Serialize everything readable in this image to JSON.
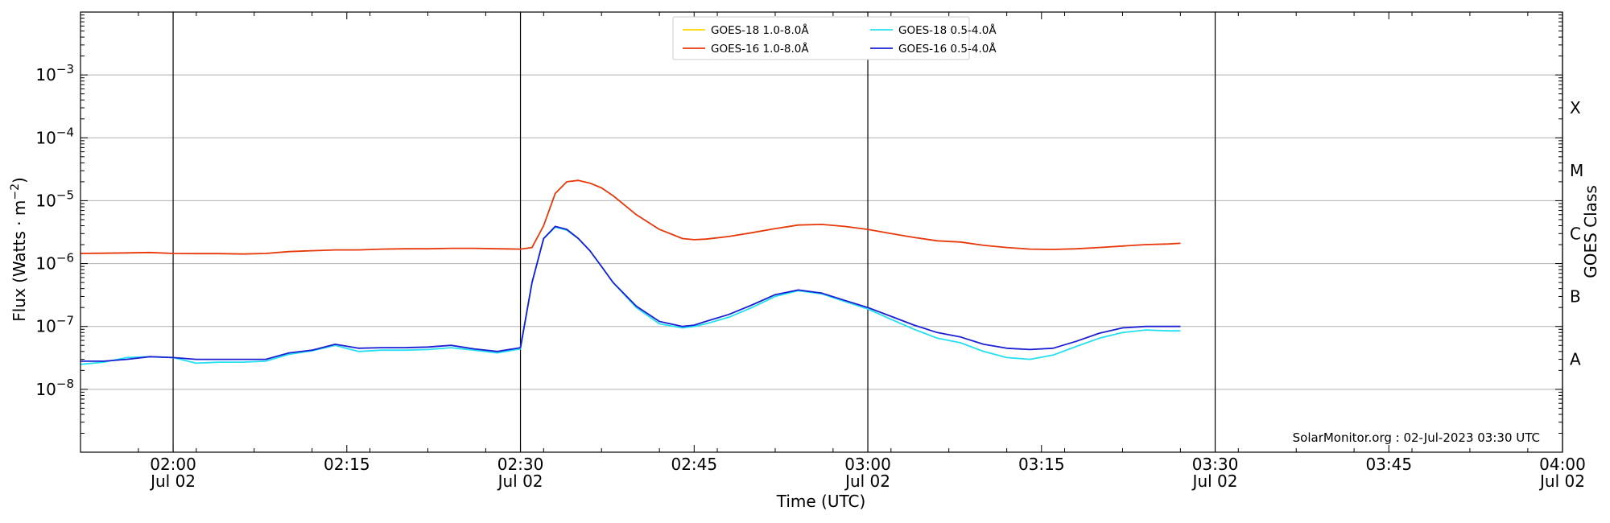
{
  "chart_data": {
    "type": "line",
    "title": "",
    "xlabel": "Time (UTC)",
    "ylabel": "Flux (Watts · m",
    "ylabel_sup": "−2",
    "ylabel_close": ")",
    "y2label": "GOES Class",
    "yscale": "log",
    "xlim": [
      "01:52",
      "04:00"
    ],
    "ylim": [
      1e-09,
      0.01
    ],
    "grid": "horizontal at decades",
    "legend_position": "top-center",
    "watermark": "SolarMonitor.org : 02-Jul-2023 03:30 UTC",
    "x_ticks": [
      {
        "value": "02:00",
        "label": "02:00",
        "sublabel": "Jul 02"
      },
      {
        "value": "02:15",
        "label": "02:15",
        "sublabel": ""
      },
      {
        "value": "02:30",
        "label": "02:30",
        "sublabel": "Jul 02"
      },
      {
        "value": "02:45",
        "label": "02:45",
        "sublabel": ""
      },
      {
        "value": "03:00",
        "label": "03:00",
        "sublabel": "Jul 02"
      },
      {
        "value": "03:15",
        "label": "03:15",
        "sublabel": ""
      },
      {
        "value": "03:30",
        "label": "03:30",
        "sublabel": "Jul 02"
      },
      {
        "value": "03:45",
        "label": "03:45",
        "sublabel": ""
      },
      {
        "value": "04:00",
        "label": "04:00",
        "sublabel": "Jul 02"
      }
    ],
    "vertical_lines": [
      "02:00",
      "02:30",
      "03:00",
      "03:30",
      "04:00"
    ],
    "y_ticks": [
      {
        "value": 1e-08,
        "base": "10",
        "exp": "−8"
      },
      {
        "value": 1e-07,
        "base": "10",
        "exp": "−7"
      },
      {
        "value": 1e-06,
        "base": "10",
        "exp": "−6"
      },
      {
        "value": 1e-05,
        "base": "10",
        "exp": "−5"
      },
      {
        "value": 0.0001,
        "base": "10",
        "exp": "−4"
      },
      {
        "value": 0.001,
        "base": "10",
        "exp": "−3"
      }
    ],
    "goes_classes": [
      {
        "label": "A",
        "value": 3e-08
      },
      {
        "label": "B",
        "value": 3e-07
      },
      {
        "label": "C",
        "value": 3e-06
      },
      {
        "label": "M",
        "value": 3e-05
      },
      {
        "label": "X",
        "value": 0.0003
      }
    ],
    "series": [
      {
        "name": "GOES-18 1.0-8.0Å",
        "color": "#FFD700",
        "x": [],
        "y": []
      },
      {
        "name": "GOES-16 1.0-8.0Å",
        "color": "#E8380A",
        "x": [
          "01:52",
          "01:54",
          "01:56",
          "01:58",
          "02:00",
          "02:02",
          "02:04",
          "02:06",
          "02:08",
          "02:10",
          "02:12",
          "02:14",
          "02:16",
          "02:18",
          "02:20",
          "02:22",
          "02:24",
          "02:26",
          "02:28",
          "02:30",
          "02:31",
          "02:32",
          "02:33",
          "02:34",
          "02:35",
          "02:36",
          "02:37",
          "02:38",
          "02:40",
          "02:42",
          "02:44",
          "02:45",
          "02:46",
          "02:48",
          "02:50",
          "02:52",
          "02:54",
          "02:56",
          "02:58",
          "03:00",
          "03:02",
          "03:04",
          "03:06",
          "03:08",
          "03:10",
          "03:12",
          "03:14",
          "03:16",
          "03:18",
          "03:20",
          "03:22",
          "03:24",
          "03:26",
          "03:27"
        ],
        "y": [
          1.45e-06,
          1.46e-06,
          1.48e-06,
          1.5e-06,
          1.45e-06,
          1.44e-06,
          1.44e-06,
          1.42e-06,
          1.45e-06,
          1.55e-06,
          1.6e-06,
          1.65e-06,
          1.65e-06,
          1.7e-06,
          1.72e-06,
          1.72e-06,
          1.75e-06,
          1.75e-06,
          1.72e-06,
          1.7e-06,
          1.8e-06,
          4e-06,
          1.3e-05,
          2e-05,
          2.1e-05,
          1.9e-05,
          1.6e-05,
          1.2e-05,
          6e-06,
          3.5e-06,
          2.5e-06,
          2.4e-06,
          2.45e-06,
          2.7e-06,
          3.1e-06,
          3.6e-06,
          4.1e-06,
          4.2e-06,
          3.9e-06,
          3.5e-06,
          3e-06,
          2.6e-06,
          2.3e-06,
          2.2e-06,
          1.95e-06,
          1.8e-06,
          1.7e-06,
          1.68e-06,
          1.72e-06,
          1.8e-06,
          1.9e-06,
          2e-06,
          2.05e-06,
          2.1e-06
        ]
      },
      {
        "name": "GOES-18 0.5-4.0Å",
        "color": "#22E0F0",
        "x": [
          "01:52",
          "01:54",
          "01:56",
          "01:58",
          "02:00",
          "02:02",
          "02:04",
          "02:06",
          "02:08",
          "02:10",
          "02:12",
          "02:14",
          "02:16",
          "02:18",
          "02:20",
          "02:22",
          "02:24",
          "02:26",
          "02:28",
          "02:30",
          "02:31",
          "02:32",
          "02:33",
          "02:34",
          "02:35",
          "02:36",
          "02:37",
          "02:38",
          "02:40",
          "02:42",
          "02:44",
          "02:45",
          "02:46",
          "02:48",
          "02:50",
          "02:52",
          "02:54",
          "02:56",
          "02:58",
          "03:00",
          "03:02",
          "03:04",
          "03:06",
          "03:08",
          "03:10",
          "03:12",
          "03:14",
          "03:16",
          "03:18",
          "03:20",
          "03:22",
          "03:24",
          "03:26",
          "03:27"
        ],
        "y": [
          2.5e-08,
          2.7e-08,
          3.2e-08,
          3.3e-08,
          3.2e-08,
          2.6e-08,
          2.7e-08,
          2.7e-08,
          2.8e-08,
          3.6e-08,
          4.1e-08,
          5e-08,
          4e-08,
          4.2e-08,
          4.2e-08,
          4.3e-08,
          4.6e-08,
          4.2e-08,
          3.8e-08,
          4.4e-08,
          5e-07,
          2.5e-06,
          3.8e-06,
          3.4e-06,
          2.5e-06,
          1.6e-06,
          9e-07,
          5e-07,
          2e-07,
          1.1e-07,
          9.5e-08,
          1e-07,
          1.1e-07,
          1.4e-07,
          2e-07,
          3e-07,
          3.7e-07,
          3.3e-07,
          2.5e-07,
          1.9e-07,
          1.3e-07,
          9e-08,
          6.5e-08,
          5.5e-08,
          4e-08,
          3.2e-08,
          3e-08,
          3.5e-08,
          4.8e-08,
          6.5e-08,
          8e-08,
          8.8e-08,
          8.5e-08,
          8.5e-08
        ]
      },
      {
        "name": "GOES-16 0.5-4.0Å",
        "color": "#1A1FD6",
        "x": [
          "01:52",
          "01:54",
          "01:56",
          "01:58",
          "02:00",
          "02:02",
          "02:04",
          "02:06",
          "02:08",
          "02:10",
          "02:12",
          "02:14",
          "02:16",
          "02:18",
          "02:20",
          "02:22",
          "02:24",
          "02:26",
          "02:28",
          "02:30",
          "02:31",
          "02:32",
          "02:33",
          "02:34",
          "02:35",
          "02:36",
          "02:37",
          "02:38",
          "02:40",
          "02:42",
          "02:44",
          "02:45",
          "02:46",
          "02:48",
          "02:50",
          "02:52",
          "02:54",
          "02:56",
          "02:58",
          "03:00",
          "03:02",
          "03:04",
          "03:06",
          "03:08",
          "03:10",
          "03:12",
          "03:14",
          "03:16",
          "03:18",
          "03:20",
          "03:22",
          "03:24",
          "03:26",
          "03:27"
        ],
        "y": [
          2.8e-08,
          2.8e-08,
          3e-08,
          3.3e-08,
          3.2e-08,
          3e-08,
          3e-08,
          3e-08,
          3e-08,
          3.8e-08,
          4.2e-08,
          5.2e-08,
          4.5e-08,
          4.6e-08,
          4.6e-08,
          4.7e-08,
          5e-08,
          4.4e-08,
          4e-08,
          4.6e-08,
          5e-07,
          2.5e-06,
          3.9e-06,
          3.5e-06,
          2.5e-06,
          1.6e-06,
          9e-07,
          5e-07,
          2.1e-07,
          1.2e-07,
          1e-07,
          1.05e-07,
          1.2e-07,
          1.55e-07,
          2.2e-07,
          3.2e-07,
          3.8e-07,
          3.4e-07,
          2.6e-07,
          2e-07,
          1.45e-07,
          1.05e-07,
          8e-08,
          6.8e-08,
          5.2e-08,
          4.5e-08,
          4.3e-08,
          4.5e-08,
          5.8e-08,
          7.8e-08,
          9.5e-08,
          1e-07,
          1e-07,
          1e-07
        ]
      }
    ]
  }
}
